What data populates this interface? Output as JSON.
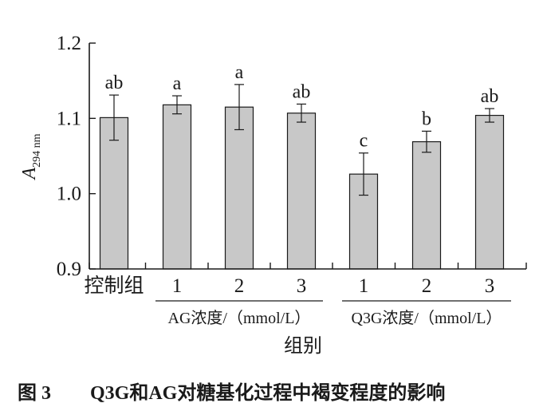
{
  "chart_data": {
    "type": "bar",
    "categories": [
      "控制组",
      "1",
      "2",
      "3",
      "1",
      "2",
      "3"
    ],
    "values": [
      1.101,
      1.118,
      1.115,
      1.107,
      1.026,
      1.069,
      1.104
    ],
    "errors": [
      0.03,
      0.012,
      0.03,
      0.012,
      0.028,
      0.014,
      0.009
    ],
    "significance": [
      "ab",
      "a",
      "a",
      "ab",
      "c",
      "b",
      "ab"
    ],
    "groups": [
      {
        "label": "AG浓度/（mmol/L）",
        "from": 1,
        "to": 3
      },
      {
        "label": "Q3G浓度/（mmol/L）",
        "from": 4,
        "to": 6
      }
    ],
    "xlabel": "组别",
    "ylabel": "A",
    "ylabel_sub": "294 nm",
    "ylim": [
      0.9,
      1.2
    ],
    "yticks": [
      "0.9",
      "1.0",
      "1.1",
      "1.2"
    ],
    "ytick_values": [
      0.9,
      1.0,
      1.1,
      1.2
    ],
    "bar_color": "#c8c8c8",
    "grid": false
  },
  "caption": {
    "number": "图 3",
    "text": "Q3G和AG对糖基化过程中褐变程度的影响"
  }
}
